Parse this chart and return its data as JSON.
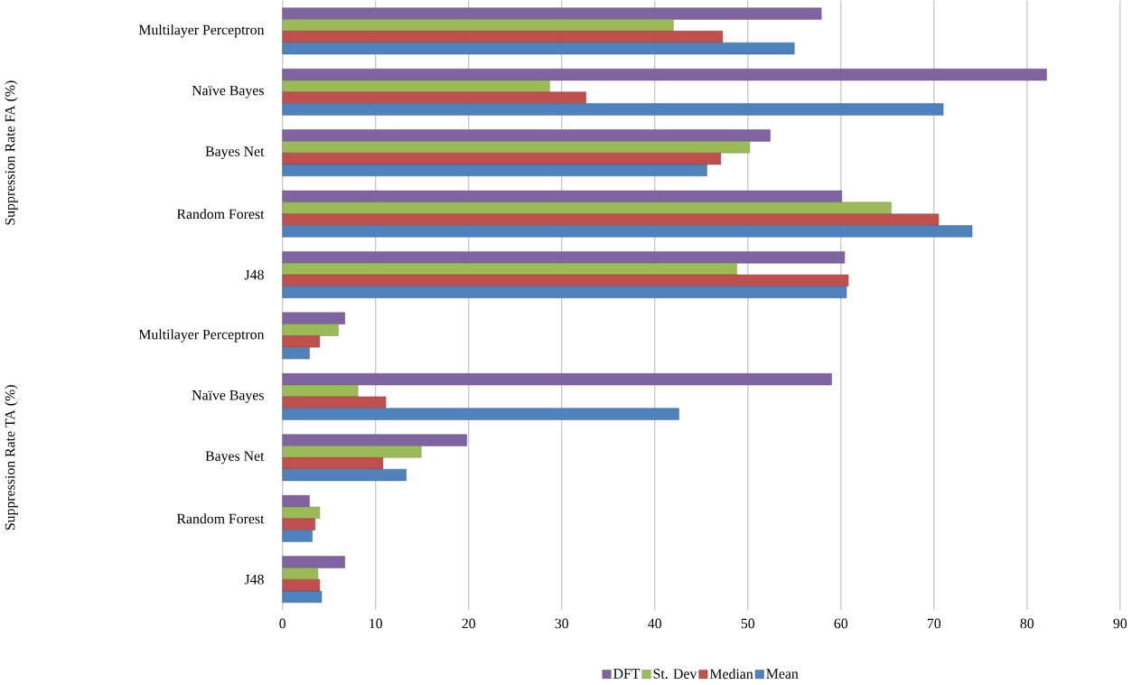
{
  "chart_data": {
    "type": "bar",
    "orientation": "horizontal",
    "categories": [
      "Multilayer Perceptron",
      "Naïve Bayes",
      "Bayes Net",
      "Random Forest",
      "J48",
      "Multilayer Perceptron",
      "Naïve Bayes",
      "Bayes Net",
      "Random Forest",
      "J48"
    ],
    "series": [
      {
        "name": "DFT",
        "color": "#8064a2",
        "values": [
          57.9,
          82.1,
          52.4,
          60.1,
          60.4,
          6.7,
          59.0,
          19.8,
          2.9,
          6.7
        ]
      },
      {
        "name": "St. Dev",
        "color": "#9bbb59",
        "values": [
          42.0,
          28.7,
          50.2,
          65.4,
          48.8,
          6.0,
          8.1,
          14.9,
          4.0,
          3.8
        ]
      },
      {
        "name": "Median",
        "color": "#c0504d",
        "values": [
          47.3,
          32.6,
          47.1,
          70.5,
          60.8,
          4.0,
          11.1,
          10.8,
          3.5,
          4.0
        ]
      },
      {
        "name": "Mean",
        "color": "#4f81bd",
        "values": [
          55.0,
          71.0,
          45.6,
          74.1,
          60.6,
          2.9,
          42.6,
          13.3,
          3.2,
          4.2
        ]
      }
    ],
    "annotations": [
      "Suppression Rate FA (%)",
      "Suppression Rate TA (%)"
    ],
    "xlim": [
      0,
      90
    ],
    "xticks": [
      0,
      10,
      20,
      30,
      40,
      50,
      60,
      70,
      80,
      90
    ],
    "grid": "x",
    "legend": "bottom"
  }
}
